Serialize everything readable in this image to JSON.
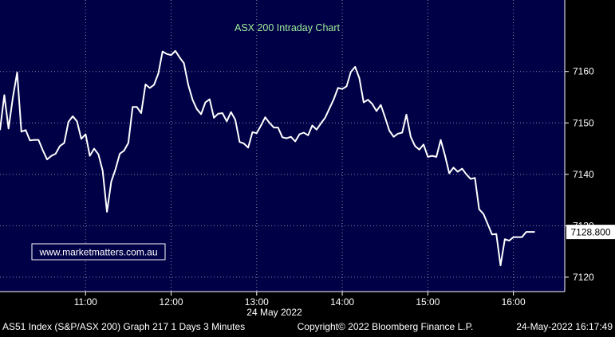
{
  "chart_data": {
    "type": "line",
    "title": "ASX 200 Intraday Chart",
    "watermark": "www.marketmatters.com.au",
    "date_label": "24 May 2022",
    "last_value_label": "7128.800",
    "x_ticks": [
      "11:00",
      "12:00",
      "13:00",
      "14:00",
      "15:00",
      "16:00"
    ],
    "y_ticks": [
      7120,
      7130,
      7140,
      7150,
      7160
    ],
    "y_tick_labels": [
      "7120",
      "7130",
      "7140",
      "7150",
      "7160"
    ],
    "xlim": [
      "10:00",
      "16:36"
    ],
    "ylim": [
      7117.2,
      7173.9
    ],
    "grid": true,
    "footer": {
      "left": "AS51 Index (S&P/ASX 200) Graph 217 1 Days 3 Minutes",
      "center": "Copyright© 2022 Bloomberg Finance L.P.",
      "right": "24-May-2022 16:17:49"
    },
    "colors": {
      "background": "#000046",
      "line": "#ffffff",
      "grid": "#8a8aa8",
      "title": "#9ff09a",
      "watermark_border": "#ffffff"
    },
    "series": [
      {
        "values": [
          [
            "10:00",
            7148.6
          ],
          [
            "10:03",
            7155.4
          ],
          [
            "10:06",
            7148.9
          ],
          [
            "10:09",
            7154.9
          ],
          [
            "10:12",
            7159.8
          ],
          [
            "10:15",
            7148.3
          ],
          [
            "10:18",
            7148.6
          ],
          [
            "10:21",
            7146.6
          ],
          [
            "10:24",
            7146.7
          ],
          [
            "10:27",
            7146.7
          ],
          [
            "10:30",
            7144.7
          ],
          [
            "10:33",
            7142.9
          ],
          [
            "10:36",
            7143.6
          ],
          [
            "10:39",
            7144.0
          ],
          [
            "10:42",
            7145.5
          ],
          [
            "10:45",
            7146.1
          ],
          [
            "10:48",
            7150.2
          ],
          [
            "10:51",
            7151.3
          ],
          [
            "10:54",
            7150.3
          ],
          [
            "10:57",
            7146.9
          ],
          [
            "11:00",
            7147.8
          ],
          [
            "11:03",
            7143.6
          ],
          [
            "11:06",
            7145.0
          ],
          [
            "11:09",
            7143.9
          ],
          [
            "11:12",
            7140.7
          ],
          [
            "11:15",
            7132.7
          ],
          [
            "11:18",
            7138.6
          ],
          [
            "11:21",
            7141.0
          ],
          [
            "11:24",
            7144.0
          ],
          [
            "11:27",
            7144.6
          ],
          [
            "11:30",
            7146.1
          ],
          [
            "11:33",
            7153.1
          ],
          [
            "11:36",
            7153.1
          ],
          [
            "11:39",
            7151.9
          ],
          [
            "11:42",
            7157.5
          ],
          [
            "11:45",
            7156.8
          ],
          [
            "11:48",
            7157.4
          ],
          [
            "11:51",
            7159.6
          ],
          [
            "11:54",
            7163.9
          ],
          [
            "11:57",
            7163.4
          ],
          [
            "12:00",
            7163.2
          ],
          [
            "12:03",
            7164.0
          ],
          [
            "12:06",
            7162.7
          ],
          [
            "12:09",
            7161.6
          ],
          [
            "12:12",
            7157.4
          ],
          [
            "12:15",
            7154.5
          ],
          [
            "12:18",
            7152.7
          ],
          [
            "12:21",
            7151.7
          ],
          [
            "12:24",
            7154.0
          ],
          [
            "12:27",
            7154.6
          ],
          [
            "12:30",
            7151.0
          ],
          [
            "12:33",
            7151.8
          ],
          [
            "12:36",
            7151.9
          ],
          [
            "12:39",
            7150.3
          ],
          [
            "12:42",
            7152.1
          ],
          [
            "12:45",
            7150.6
          ],
          [
            "12:48",
            7146.3
          ],
          [
            "12:51",
            7146.0
          ],
          [
            "12:54",
            7145.2
          ],
          [
            "12:57",
            7148.2
          ],
          [
            "13:00",
            7148.0
          ],
          [
            "13:03",
            7149.5
          ],
          [
            "13:06",
            7151.1
          ],
          [
            "13:09",
            7150.0
          ],
          [
            "13:12",
            7149.1
          ],
          [
            "13:15",
            7149.1
          ],
          [
            "13:18",
            7147.2
          ],
          [
            "13:21",
            7147.0
          ],
          [
            "13:24",
            7147.3
          ],
          [
            "13:27",
            7146.4
          ],
          [
            "13:30",
            7147.8
          ],
          [
            "13:33",
            7148.1
          ],
          [
            "13:36",
            7147.6
          ],
          [
            "13:39",
            7149.5
          ],
          [
            "13:42",
            7148.7
          ],
          [
            "13:45",
            7149.9
          ],
          [
            "13:48",
            7151.0
          ],
          [
            "13:51",
            7152.8
          ],
          [
            "13:54",
            7154.6
          ],
          [
            "13:57",
            7156.8
          ],
          [
            "14:00",
            7156.6
          ],
          [
            "14:03",
            7157.1
          ],
          [
            "14:06",
            7159.9
          ],
          [
            "14:09",
            7160.9
          ],
          [
            "14:12",
            7158.7
          ],
          [
            "14:15",
            7154.0
          ],
          [
            "14:18",
            7154.5
          ],
          [
            "14:21",
            7153.7
          ],
          [
            "14:24",
            7152.3
          ],
          [
            "14:27",
            7153.5
          ],
          [
            "14:30",
            7151.1
          ],
          [
            "14:33",
            7148.5
          ],
          [
            "14:36",
            7147.3
          ],
          [
            "14:39",
            7147.9
          ],
          [
            "14:42",
            7148.1
          ],
          [
            "14:45",
            7151.6
          ],
          [
            "14:48",
            7147.3
          ],
          [
            "14:51",
            7145.5
          ],
          [
            "14:54",
            7144.8
          ],
          [
            "14:57",
            7145.8
          ],
          [
            "15:00",
            7143.4
          ],
          [
            "15:03",
            7143.6
          ],
          [
            "15:06",
            7143.4
          ],
          [
            "15:09",
            7146.7
          ],
          [
            "15:12",
            7143.7
          ],
          [
            "15:15",
            7140.2
          ],
          [
            "15:18",
            7141.3
          ],
          [
            "15:21",
            7140.5
          ],
          [
            "15:24",
            7141.1
          ],
          [
            "15:27",
            7140.0
          ],
          [
            "15:30",
            7139.1
          ],
          [
            "15:33",
            7139.3
          ],
          [
            "15:36",
            7133.2
          ],
          [
            "15:39",
            7132.3
          ],
          [
            "15:42",
            7130.3
          ],
          [
            "15:45",
            7128.3
          ],
          [
            "15:48",
            7128.4
          ],
          [
            "15:51",
            7122.3
          ],
          [
            "15:54",
            7127.4
          ],
          [
            "15:57",
            7127.1
          ],
          [
            "16:00",
            7127.8
          ],
          [
            "16:03",
            7127.8
          ],
          [
            "16:06",
            7127.8
          ],
          [
            "16:09",
            7128.8
          ],
          [
            "16:12",
            7128.8
          ],
          [
            "16:15",
            7128.8
          ]
        ]
      }
    ]
  }
}
